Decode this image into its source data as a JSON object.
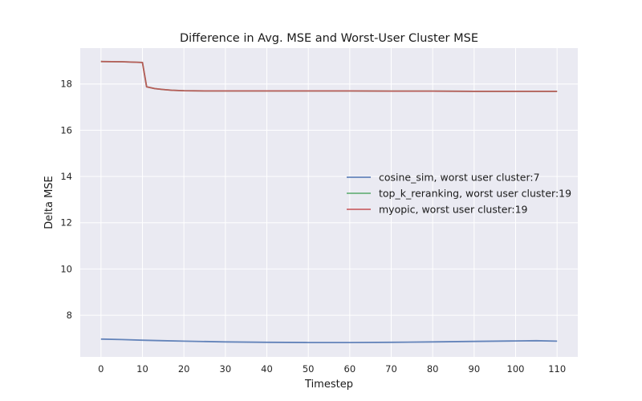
{
  "chart_data": {
    "type": "line",
    "title": "Difference in Avg. MSE and Worst-User Cluster MSE",
    "xlabel": "Timestep",
    "ylabel": "Delta MSE",
    "xlim": [
      -5,
      115
    ],
    "ylim": [
      6.2,
      19.55
    ],
    "xticks": [
      0,
      10,
      20,
      30,
      40,
      50,
      60,
      70,
      80,
      90,
      100,
      110
    ],
    "yticks": [
      8,
      10,
      12,
      14,
      16,
      18
    ],
    "grid": true,
    "legend_position": "center-right",
    "colors": {
      "background": "#eaeaf2",
      "grid": "#ffffff"
    },
    "series": [
      {
        "name": "cosine_sim, worst user cluster:7",
        "color": "#4c72b0",
        "x": [
          0,
          5,
          10,
          15,
          20,
          30,
          40,
          50,
          60,
          70,
          80,
          90,
          100,
          105,
          110
        ],
        "y": [
          6.97,
          6.95,
          6.92,
          6.9,
          6.88,
          6.85,
          6.83,
          6.82,
          6.82,
          6.83,
          6.85,
          6.87,
          6.89,
          6.9,
          6.88
        ]
      },
      {
        "name": "top_k_reranking, worst user cluster:19",
        "color": "#55a868",
        "x": [
          0,
          5,
          10,
          11,
          13,
          15,
          17,
          20,
          25,
          30,
          40,
          50,
          60,
          70,
          80,
          90,
          100,
          110
        ],
        "y": [
          18.97,
          18.96,
          18.93,
          17.88,
          17.8,
          17.76,
          17.73,
          17.71,
          17.7,
          17.7,
          17.7,
          17.7,
          17.7,
          17.69,
          17.69,
          17.68,
          17.68,
          17.68
        ]
      },
      {
        "name": "myopic, worst user cluster:19",
        "color": "#c44e52",
        "x": [
          0,
          5,
          10,
          11,
          13,
          15,
          17,
          20,
          25,
          30,
          40,
          50,
          60,
          70,
          80,
          90,
          100,
          110
        ],
        "y": [
          18.97,
          18.96,
          18.93,
          17.88,
          17.8,
          17.76,
          17.73,
          17.71,
          17.7,
          17.7,
          17.7,
          17.7,
          17.7,
          17.69,
          17.69,
          17.68,
          17.68,
          17.68
        ]
      }
    ]
  }
}
